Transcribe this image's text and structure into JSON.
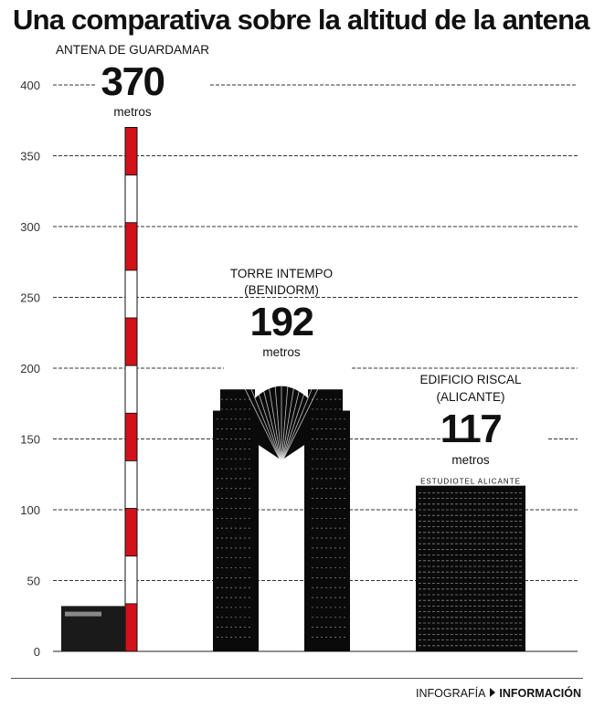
{
  "page": {
    "title": "Una comparativa sobre la altitud de la antena",
    "footer": {
      "section": "INFOGRAFÍA",
      "department": "INFORMACIÓN"
    }
  },
  "chart_data": {
    "type": "bar",
    "title": "Una comparativa sobre la altitud de la antena",
    "ylim": [
      0,
      400
    ],
    "yticks": [
      0,
      50,
      100,
      150,
      200,
      250,
      300,
      350,
      400
    ],
    "grid": true,
    "unit": "metros",
    "categories": [
      "ANTENA DE GUARDAMAR",
      "TORRE INTEMPO (BENIDORM)",
      "EDIFICIO RISCAL (ALICANTE)"
    ],
    "bars": [
      {
        "name_lines": [
          "ANTENA DE GUARDAMAR"
        ],
        "value": 370,
        "value_label": "370",
        "unit": "metros"
      },
      {
        "name_lines": [
          "TORRE INTEMPO",
          "(BENIDORM)"
        ],
        "value": 192,
        "value_label": "192",
        "unit": "metros"
      },
      {
        "name_lines": [
          "EDIFICIO RISCAL",
          "(ALICANTE)"
        ],
        "value": 117,
        "value_label": "117",
        "unit": "metros",
        "sign_text": "ESTUDIOTEL ALICANTE"
      }
    ],
    "colors": {
      "antenna_red": "#d0121b",
      "building": "#0a0a0a",
      "grid": "#333333"
    }
  }
}
